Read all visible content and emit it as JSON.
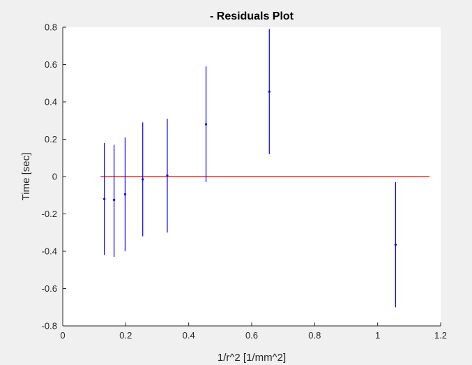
{
  "chart_data": {
    "type": "scatter",
    "title": "- Residuals Plot",
    "xlabel": "1/r^2 [1/mm^2]",
    "ylabel": "Time [sec]",
    "xlim": [
      0,
      1.2
    ],
    "ylim": [
      -0.8,
      0.8
    ],
    "xticks": [
      0,
      0.2,
      0.4,
      0.6,
      0.8,
      1,
      1.2
    ],
    "xtick_labels": [
      "0",
      "0.2",
      "0.4",
      "0.6",
      "0.8",
      "1",
      "1.2"
    ],
    "yticks": [
      -0.8,
      -0.6,
      -0.4,
      -0.2,
      0,
      0.2,
      0.4,
      0.6,
      0.8
    ],
    "ytick_labels": [
      "-0.8",
      "-0.6",
      "-0.4",
      "-0.2",
      "0",
      "0.2",
      "0.4",
      "0.6",
      "0.8"
    ],
    "grid": false,
    "series": [
      {
        "x": [
          0.132,
          0.163,
          0.198,
          0.254,
          0.332,
          0.455,
          0.656,
          1.057
        ],
        "y": [
          -0.12,
          -0.125,
          -0.095,
          -0.015,
          0.005,
          0.28,
          0.455,
          -0.365
        ],
        "error_low": [
          -0.42,
          -0.43,
          -0.4,
          -0.32,
          -0.3,
          -0.03,
          0.12,
          -0.7
        ],
        "error_high": [
          0.18,
          0.17,
          0.21,
          0.29,
          0.31,
          0.59,
          0.79,
          -0.03
        ],
        "color": "#0000ff"
      }
    ],
    "reference_line": {
      "y": 0,
      "x_start": 0.12,
      "x_end": 1.165,
      "color": "#ff0000"
    }
  },
  "colors": {
    "background": "#f0f0f0",
    "axes_background": "#ffffff",
    "axis_color": "#262626",
    "data_color": "#0000ff",
    "reference_color": "#ff0000"
  }
}
